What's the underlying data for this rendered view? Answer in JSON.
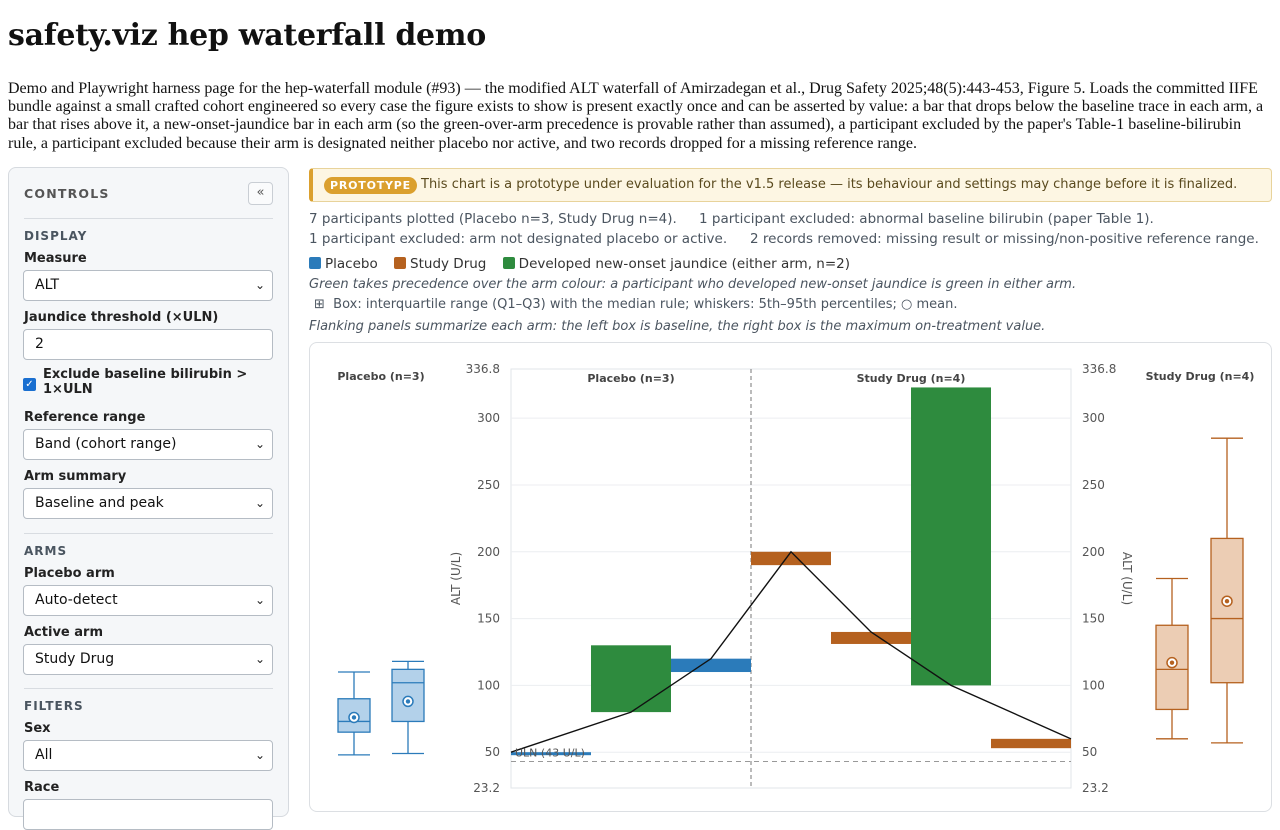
{
  "page": {
    "title": "safety.viz hep waterfall demo",
    "intro": "Demo and Playwright harness page for the hep-waterfall module (#93) — the modified ALT waterfall of Amirzadegan et al., Drug Safety 2025;48(5):443-453, Figure 5. Loads the committed IIFE bundle against a small crafted cohort engineered so every case the figure exists to show is present exactly once and can be asserted by value: a bar that drops below the baseline trace in each arm, a bar that rises above it, a new-onset-jaundice bar in each arm (so the green-over-arm precedence is provable rather than assumed), a participant excluded by the paper's Table-1 baseline-bilirubin rule, a participant excluded because their arm is designated neither placebo nor active, and two records dropped for a missing reference range."
  },
  "controls": {
    "header": "CONTROLS",
    "collapse_label": "«",
    "display_section": "DISPLAY",
    "measure_label": "Measure",
    "measure_value": "ALT",
    "jaundice_label": "Jaundice threshold (×ULN)",
    "jaundice_value": "2",
    "exclude_label": "Exclude baseline bilirubin > 1×ULN",
    "exclude_checked": true,
    "refrange_label": "Reference range",
    "refrange_value": "Band (cohort range)",
    "armsummary_label": "Arm summary",
    "armsummary_value": "Baseline and peak",
    "arms_section": "ARMS",
    "placebo_label": "Placebo arm",
    "placebo_value": "Auto-detect",
    "active_label": "Active arm",
    "active_value": "Study Drug",
    "filters_section": "FILTERS",
    "sex_label": "Sex",
    "sex_value": "All",
    "race_label": "Race"
  },
  "banner": {
    "badge": "PROTOTYPE",
    "text": "This chart is a prototype under evaluation for the v1.5 release — its behaviour and settings may change before it is finalized."
  },
  "summary": {
    "plotted": "7 participants plotted (Placebo n=3, Study Drug n=4).",
    "excl_bili": "1 participant excluded: abnormal baseline bilirubin (paper Table 1).",
    "excl_arm": "1 participant excluded: arm not designated placebo or active.",
    "removed": "2 records removed: missing result or missing/non-positive reference range."
  },
  "legend": {
    "placebo": "Placebo",
    "drug": "Study Drug",
    "jaundice": "Developed new-onset jaundice (either arm, n=2)"
  },
  "notes": {
    "precedence": "Green takes precedence over the arm colour: a participant who developed new-onset jaundice is green in either arm.",
    "box_icon": "⊞",
    "box": "Box: interquartile range (Q1–Q3) with the median rule; whiskers: 5th–95th percentiles; ○ mean.",
    "flank": "Flanking panels summarize each arm: the left box is baseline, the right box is the maximum on-treatment value."
  },
  "colors": {
    "placebo": "#2b7bba",
    "drug": "#b5611f",
    "jaundice": "#2e8b3e",
    "placebo_fill": "#b3d1ea",
    "drug_fill": "#eccdb4"
  },
  "chart_data": {
    "type": "waterfall",
    "ylabel": "ALT (U/L)",
    "ylim": [
      23.2,
      336.8
    ],
    "yticks": [
      50,
      100,
      150,
      200,
      250,
      300
    ],
    "ymin_label": "23.2",
    "ymax_label": "336.8",
    "uln": 43,
    "uln_label": "ULN (43 U/L)",
    "panels": [
      {
        "name": "Placebo (n=3)"
      },
      {
        "name": "Study Drug (n=4)"
      }
    ],
    "participants": [
      {
        "arm": "Placebo",
        "baseline": 50,
        "peak": 48,
        "jaundice": false
      },
      {
        "arm": "Placebo",
        "baseline": 80,
        "peak": 130,
        "jaundice": true
      },
      {
        "arm": "Placebo",
        "baseline": 120,
        "peak": 110,
        "jaundice": false
      },
      {
        "arm": "Study Drug",
        "baseline": 200,
        "peak": 190,
        "jaundice": false
      },
      {
        "arm": "Study Drug",
        "baseline": 140,
        "peak": 131,
        "jaundice": false
      },
      {
        "arm": "Study Drug",
        "baseline": 100,
        "peak": 323,
        "jaundice": true
      },
      {
        "arm": "Study Drug",
        "baseline": 60,
        "peak": 53,
        "jaundice": false
      }
    ],
    "flank_left": {
      "name": "Placebo (n=3)",
      "boxes": [
        {
          "label": "baseline",
          "p5": 48,
          "q1": 65,
          "median": 73,
          "q3": 90,
          "p95": 110,
          "mean": 76
        },
        {
          "label": "peak",
          "p5": 49,
          "q1": 73,
          "median": 102,
          "q3": 112,
          "p95": 118,
          "mean": 88
        }
      ]
    },
    "flank_right": {
      "name": "Study Drug (n=4)",
      "boxes": [
        {
          "label": "baseline",
          "p5": 60,
          "q1": 82,
          "median": 112,
          "q3": 145,
          "p95": 180,
          "mean": 117
        },
        {
          "label": "peak",
          "p5": 57,
          "q1": 102,
          "median": 150,
          "q3": 210,
          "p95": 285,
          "mean": 163
        }
      ]
    }
  }
}
